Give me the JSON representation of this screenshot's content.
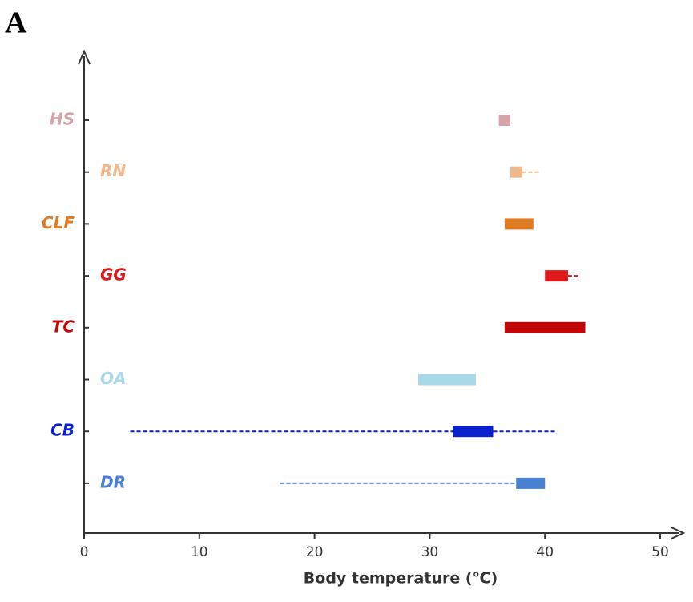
{
  "panel_label": "A",
  "chart_data": {
    "type": "range",
    "x_label": "Body temperature (℃)",
    "categories": [
      "HS",
      "RN",
      "CLF",
      "GG",
      "TC",
      "OA",
      "CB",
      "DR"
    ],
    "colors": [
      "#d7a3ab",
      "#f2b88a",
      "#e07b22",
      "#e0191d",
      "#c20606",
      "#a9d9e6",
      "#0a1fd0",
      "#4a80d2"
    ],
    "low": [
      36,
      37,
      36.5,
      40,
      36.5,
      29,
      32,
      37.5
    ],
    "high": [
      37,
      38,
      39,
      42,
      43.5,
      34,
      35.5,
      40
    ],
    "whisker_low": [
      null,
      null,
      null,
      null,
      null,
      null,
      4,
      17
    ],
    "whisker_high": [
      null,
      39.5,
      null,
      43,
      null,
      null,
      41,
      null
    ],
    "xlim": [
      0,
      50
    ],
    "xticks": [
      0,
      10,
      20,
      30,
      40,
      50
    ]
  }
}
